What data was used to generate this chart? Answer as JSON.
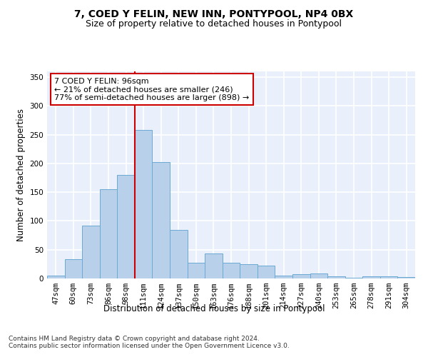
{
  "title": "7, COED Y FELIN, NEW INN, PONTYPOOL, NP4 0BX",
  "subtitle": "Size of property relative to detached houses in Pontypool",
  "xlabel": "Distribution of detached houses by size in Pontypool",
  "ylabel": "Number of detached properties",
  "categories": [
    "47sqm",
    "60sqm",
    "73sqm",
    "86sqm",
    "98sqm",
    "111sqm",
    "124sqm",
    "137sqm",
    "150sqm",
    "163sqm",
    "176sqm",
    "188sqm",
    "201sqm",
    "214sqm",
    "227sqm",
    "240sqm",
    "253sqm",
    "265sqm",
    "278sqm",
    "291sqm",
    "304sqm"
  ],
  "values": [
    5,
    33,
    92,
    155,
    180,
    258,
    202,
    85,
    27,
    44,
    27,
    25,
    22,
    5,
    8,
    9,
    4,
    1,
    4,
    4,
    3
  ],
  "bar_color": "#b8d0ea",
  "bar_edge_color": "#6aaad4",
  "bg_color": "#eaf0fb",
  "grid_color": "#ffffff",
  "vline_x_index": 4,
  "vline_color": "#cc0000",
  "annotation_line1": "7 COED Y FELIN: 96sqm",
  "annotation_line2": "← 21% of detached houses are smaller (246)",
  "annotation_line3": "77% of semi-detached houses are larger (898) →",
  "annotation_box_color": "#ffffff",
  "annotation_box_edge": "#cc0000",
  "footer1": "Contains HM Land Registry data © Crown copyright and database right 2024.",
  "footer2": "Contains public sector information licensed under the Open Government Licence v3.0.",
  "ylim": [
    0,
    360
  ],
  "yticks": [
    0,
    50,
    100,
    150,
    200,
    250,
    300,
    350
  ],
  "title_fontsize": 10,
  "subtitle_fontsize": 9,
  "axis_label_fontsize": 8.5,
  "tick_fontsize": 7.5,
  "annotation_fontsize": 8,
  "footer_fontsize": 6.5
}
